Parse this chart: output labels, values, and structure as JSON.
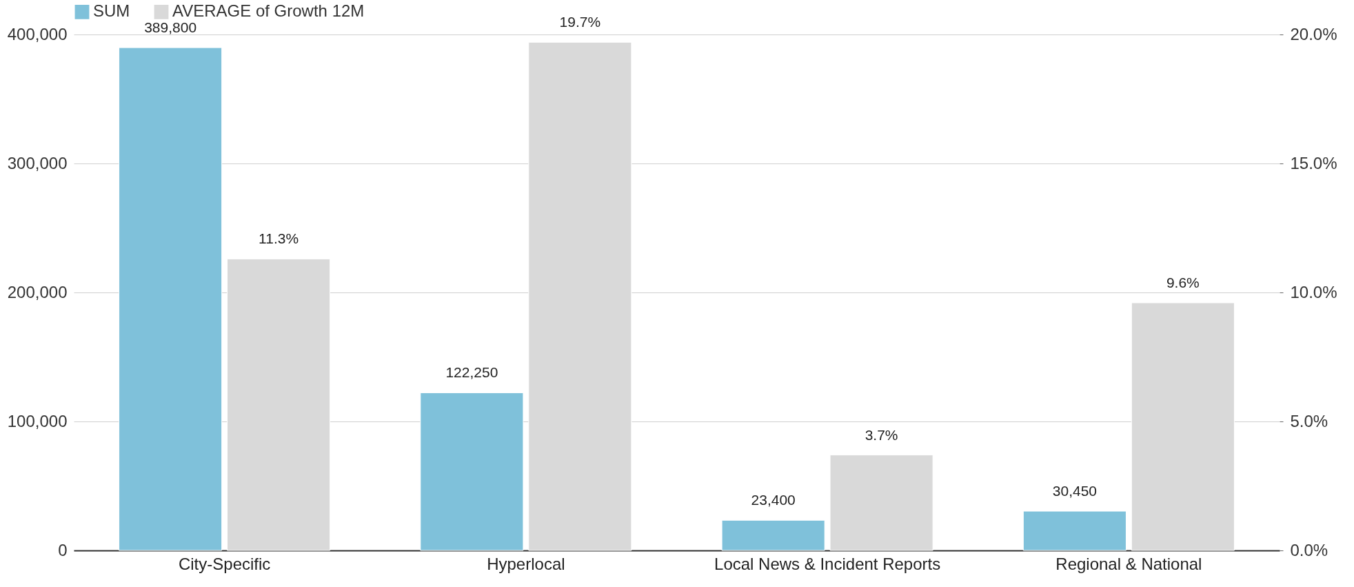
{
  "chart_data": {
    "type": "bar",
    "categories": [
      "City-Specific",
      "Hyperlocal",
      "Local News & Incident Reports",
      "Regional & National"
    ],
    "series": [
      {
        "name": "SUM",
        "color": "#7fc1da",
        "values": [
          389800,
          122250,
          23400,
          30450
        ],
        "value_labels": [
          "389,800",
          "122,250",
          "23,400",
          "30,450"
        ]
      },
      {
        "name": "AVERAGE of Growth 12M",
        "color": "#d9d9d9",
        "axis": "y2",
        "values": [
          11.3,
          19.7,
          3.7,
          9.6
        ],
        "value_labels": [
          "11.3%",
          "19.7%",
          "3.7%",
          "9.6%"
        ]
      }
    ],
    "ylim": [
      0,
      400000
    ],
    "yticks": [
      {
        "value": 0,
        "label": "0"
      },
      {
        "value": 100000,
        "label": "100,000"
      },
      {
        "value": 200000,
        "label": "200,000"
      },
      {
        "value": 300000,
        "label": "300,000"
      },
      {
        "value": 400000,
        "label": "400,000"
      }
    ],
    "y2lim": [
      0,
      20
    ],
    "y2ticks": [
      {
        "value": 0,
        "label": "0.0%"
      },
      {
        "value": 5,
        "label": "5.0%"
      },
      {
        "value": 10,
        "label": "10.0%"
      },
      {
        "value": 15,
        "label": "15.0%"
      },
      {
        "value": 20,
        "label": "20.0%"
      }
    ],
    "grid": "y",
    "legend": "top"
  }
}
